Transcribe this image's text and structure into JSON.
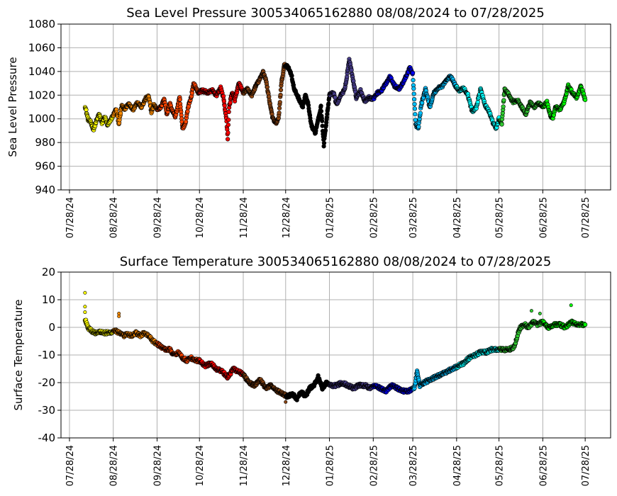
{
  "chart_data": [
    {
      "type": "scatter",
      "title": "Sea Level Pressure 300534065162880  08/08/2024 to 07/28/2025",
      "ylabel": "Sea Level Pressure",
      "xlabel": "",
      "xlim": [
        "2024-07-22",
        "2025-08-15"
      ],
      "ylim": [
        940,
        1080
      ],
      "yticks": [
        940,
        960,
        980,
        1000,
        1020,
        1040,
        1060,
        1080
      ],
      "xticks": [
        "2024-07-28",
        "2024-08-28",
        "2024-09-28",
        "2024-10-28",
        "2024-11-28",
        "2024-12-28",
        "2025-01-28",
        "2025-02-28",
        "2025-03-28",
        "2025-04-28",
        "2025-05-28",
        "2025-06-28",
        "2025-07-28"
      ],
      "xtick_labels": [
        "07/28/24",
        "08/28/24",
        "09/28/24",
        "10/28/24",
        "11/28/24",
        "12/28/24",
        "01/28/25",
        "02/28/25",
        "03/28/25",
        "04/28/25",
        "05/28/25",
        "06/28/25",
        "07/28/25"
      ],
      "grid": true,
      "color_segments": [
        {
          "start": "2024-08-08",
          "end": "2024-08-28",
          "color": "#ffff00"
        },
        {
          "start": "2024-08-28",
          "end": "2024-09-28",
          "color": "#ff8c00"
        },
        {
          "start": "2024-09-28",
          "end": "2024-10-28",
          "color": "#ff4500"
        },
        {
          "start": "2024-10-28",
          "end": "2024-11-28",
          "color": "#ff0000"
        },
        {
          "start": "2024-11-28",
          "end": "2024-12-28",
          "color": "#8b4513"
        },
        {
          "start": "2024-12-28",
          "end": "2025-01-28",
          "color": "#000000"
        },
        {
          "start": "2025-01-28",
          "end": "2025-02-28",
          "color": "#483d8b"
        },
        {
          "start": "2025-02-28",
          "end": "2025-03-28",
          "color": "#0000ff"
        },
        {
          "start": "2025-03-28",
          "end": "2025-04-28",
          "color": "#00bfff"
        },
        {
          "start": "2025-04-28",
          "end": "2025-05-28",
          "color": "#00ffff"
        },
        {
          "start": "2025-05-28",
          "end": "2025-06-28",
          "color": "#32cd32"
        },
        {
          "start": "2025-06-28",
          "end": "2025-07-28",
          "color": "#00ff00"
        }
      ],
      "points": [
        [
          "2024-08-08",
          1011
        ],
        [
          "2024-08-10",
          1000
        ],
        [
          "2024-08-12",
          997
        ],
        [
          "2024-08-14",
          991
        ],
        [
          "2024-08-16",
          998
        ],
        [
          "2024-08-18",
          1004
        ],
        [
          "2024-08-20",
          996
        ],
        [
          "2024-08-22",
          1002
        ],
        [
          "2024-08-24",
          994
        ],
        [
          "2024-08-26",
          999
        ],
        [
          "2024-08-28",
          1003
        ],
        [
          "2024-08-30",
          1008
        ],
        [
          "2024-09-01",
          996
        ],
        [
          "2024-09-03",
          1011
        ],
        [
          "2024-09-05",
          1008
        ],
        [
          "2024-09-08",
          1013
        ],
        [
          "2024-09-11",
          1008
        ],
        [
          "2024-09-14",
          1014
        ],
        [
          "2024-09-17",
          1010
        ],
        [
          "2024-09-20",
          1017
        ],
        [
          "2024-09-22",
          1019
        ],
        [
          "2024-09-24",
          1006
        ],
        [
          "2024-09-26",
          1012
        ],
        [
          "2024-09-28",
          1008
        ],
        [
          "2024-10-01",
          1010
        ],
        [
          "2024-10-03",
          1017
        ],
        [
          "2024-10-05",
          1004
        ],
        [
          "2024-10-07",
          1013
        ],
        [
          "2024-10-09",
          1006
        ],
        [
          "2024-10-11",
          1002
        ],
        [
          "2024-10-14",
          1018
        ],
        [
          "2024-10-16",
          992
        ],
        [
          "2024-10-18",
          996
        ],
        [
          "2024-10-20",
          1010
        ],
        [
          "2024-10-22",
          1018
        ],
        [
          "2024-10-24",
          1030
        ],
        [
          "2024-10-27",
          1022
        ],
        [
          "2024-10-30",
          1024
        ],
        [
          "2024-11-03",
          1022
        ],
        [
          "2024-11-06",
          1024
        ],
        [
          "2024-11-09",
          1020
        ],
        [
          "2024-11-12",
          1026
        ],
        [
          "2024-11-14",
          1018
        ],
        [
          "2024-11-16",
          1000
        ],
        [
          "2024-11-17",
          984
        ],
        [
          "2024-11-18",
          1010
        ],
        [
          "2024-11-20",
          1022
        ],
        [
          "2024-11-22",
          1016
        ],
        [
          "2024-11-25",
          1030
        ],
        [
          "2024-11-28",
          1022
        ],
        [
          "2024-12-01",
          1025
        ],
        [
          "2024-12-04",
          1020
        ],
        [
          "2024-12-07",
          1028
        ],
        [
          "2024-12-10",
          1034
        ],
        [
          "2024-12-12",
          1040
        ],
        [
          "2024-12-14",
          1033
        ],
        [
          "2024-12-17",
          1012
        ],
        [
          "2024-12-19",
          1000
        ],
        [
          "2024-12-21",
          996
        ],
        [
          "2024-12-23",
          1000
        ],
        [
          "2024-12-25",
          1030
        ],
        [
          "2024-12-27",
          1045
        ],
        [
          "2024-12-29",
          1045
        ],
        [
          "2025-01-01",
          1038
        ],
        [
          "2025-01-03",
          1025
        ],
        [
          "2025-01-06",
          1018
        ],
        [
          "2025-01-09",
          1010
        ],
        [
          "2025-01-11",
          1020
        ],
        [
          "2025-01-13",
          1012
        ],
        [
          "2025-01-15",
          995
        ],
        [
          "2025-01-18",
          988
        ],
        [
          "2025-01-20",
          1000
        ],
        [
          "2025-01-22",
          1010
        ],
        [
          "2025-01-24",
          978
        ],
        [
          "2025-01-26",
          1000
        ],
        [
          "2025-01-28",
          1020
        ],
        [
          "2025-01-31",
          1022
        ],
        [
          "2025-02-02",
          1012
        ],
        [
          "2025-02-05",
          1020
        ],
        [
          "2025-02-08",
          1025
        ],
        [
          "2025-02-11",
          1050
        ],
        [
          "2025-02-13",
          1038
        ],
        [
          "2025-02-16",
          1018
        ],
        [
          "2025-02-19",
          1024
        ],
        [
          "2025-02-22",
          1015
        ],
        [
          "2025-02-25",
          1018
        ],
        [
          "2025-02-28",
          1017
        ],
        [
          "2025-03-03",
          1022
        ],
        [
          "2025-03-06",
          1024
        ],
        [
          "2025-03-09",
          1030
        ],
        [
          "2025-03-12",
          1036
        ],
        [
          "2025-03-15",
          1028
        ],
        [
          "2025-03-18",
          1025
        ],
        [
          "2025-03-21",
          1030
        ],
        [
          "2025-03-24",
          1038
        ],
        [
          "2025-03-26",
          1043
        ],
        [
          "2025-03-28",
          1038
        ],
        [
          "2025-03-30",
          995
        ],
        [
          "2025-04-01",
          992
        ],
        [
          "2025-04-03",
          1012
        ],
        [
          "2025-04-06",
          1025
        ],
        [
          "2025-04-09",
          1010
        ],
        [
          "2025-04-12",
          1022
        ],
        [
          "2025-04-15",
          1026
        ],
        [
          "2025-04-18",
          1028
        ],
        [
          "2025-04-21",
          1033
        ],
        [
          "2025-04-24",
          1036
        ],
        [
          "2025-04-27",
          1028
        ],
        [
          "2025-04-30",
          1024
        ],
        [
          "2025-05-03",
          1026
        ],
        [
          "2025-05-06",
          1020
        ],
        [
          "2025-05-09",
          1006
        ],
        [
          "2025-05-12",
          1010
        ],
        [
          "2025-05-15",
          1025
        ],
        [
          "2025-05-18",
          1012
        ],
        [
          "2025-05-21",
          1006
        ],
        [
          "2025-05-24",
          996
        ],
        [
          "2025-05-26",
          992
        ],
        [
          "2025-05-28",
          1000
        ],
        [
          "2025-05-30",
          996
        ],
        [
          "2025-06-01",
          1025
        ],
        [
          "2025-06-04",
          1020
        ],
        [
          "2025-06-07",
          1014
        ],
        [
          "2025-06-10",
          1016
        ],
        [
          "2025-06-13",
          1010
        ],
        [
          "2025-06-16",
          1004
        ],
        [
          "2025-06-19",
          1014
        ],
        [
          "2025-06-22",
          1010
        ],
        [
          "2025-06-25",
          1013
        ],
        [
          "2025-06-28",
          1010
        ],
        [
          "2025-07-01",
          1014
        ],
        [
          "2025-07-03",
          1004
        ],
        [
          "2025-07-05",
          1000
        ],
        [
          "2025-07-07",
          1010
        ],
        [
          "2025-07-10",
          1008
        ],
        [
          "2025-07-13",
          1014
        ],
        [
          "2025-07-16",
          1028
        ],
        [
          "2025-07-19",
          1022
        ],
        [
          "2025-07-22",
          1018
        ],
        [
          "2025-07-25",
          1028
        ],
        [
          "2025-07-28",
          1016
        ]
      ]
    },
    {
      "type": "scatter",
      "title": "Surface Temperature 300534065162880  08/08/2024 to 07/28/2025",
      "ylabel": "Surface Temperature",
      "xlabel": "",
      "xlim": [
        "2024-07-22",
        "2025-08-15"
      ],
      "ylim": [
        -40,
        20
      ],
      "yticks": [
        -40,
        -30,
        -20,
        -10,
        0,
        10,
        20
      ],
      "xticks": [
        "2024-07-28",
        "2024-08-28",
        "2024-09-28",
        "2024-10-28",
        "2024-11-28",
        "2024-12-28",
        "2025-01-28",
        "2025-02-28",
        "2025-03-28",
        "2025-04-28",
        "2025-05-28",
        "2025-06-28",
        "2025-07-28"
      ],
      "xtick_labels": [
        "07/28/24",
        "08/28/24",
        "09/28/24",
        "10/28/24",
        "11/28/24",
        "12/28/24",
        "01/28/25",
        "02/28/25",
        "03/28/25",
        "04/28/25",
        "05/28/25",
        "06/28/25",
        "07/28/25"
      ],
      "grid": true,
      "color_segments": [
        {
          "start": "2024-08-08",
          "end": "2024-08-28",
          "color": "#ffff00"
        },
        {
          "start": "2024-08-28",
          "end": "2024-09-28",
          "color": "#ff8c00"
        },
        {
          "start": "2024-09-28",
          "end": "2024-10-28",
          "color": "#ff4500"
        },
        {
          "start": "2024-10-28",
          "end": "2024-11-28",
          "color": "#ff0000"
        },
        {
          "start": "2024-11-28",
          "end": "2024-12-28",
          "color": "#8b4513"
        },
        {
          "start": "2024-12-28",
          "end": "2025-01-28",
          "color": "#000000"
        },
        {
          "start": "2025-01-28",
          "end": "2025-02-28",
          "color": "#483d8b"
        },
        {
          "start": "2025-02-28",
          "end": "2025-03-28",
          "color": "#0000ff"
        },
        {
          "start": "2025-03-28",
          "end": "2025-04-28",
          "color": "#00bfff"
        },
        {
          "start": "2025-04-28",
          "end": "2025-05-28",
          "color": "#00ffff"
        },
        {
          "start": "2025-05-28",
          "end": "2025-06-28",
          "color": "#32cd32"
        },
        {
          "start": "2025-06-28",
          "end": "2025-07-28",
          "color": "#00ff00"
        }
      ],
      "points": [
        [
          "2024-08-08",
          3
        ],
        [
          "2024-08-10",
          0
        ],
        [
          "2024-08-12",
          -1
        ],
        [
          "2024-08-15",
          -2
        ],
        [
          "2024-08-18",
          -1.5
        ],
        [
          "2024-08-22",
          -2
        ],
        [
          "2024-08-26",
          -2
        ],
        [
          "2024-08-29",
          -1
        ],
        [
          "2024-09-01",
          -2
        ],
        [
          "2024-09-04",
          -3
        ],
        [
          "2024-09-07",
          -2.5
        ],
        [
          "2024-09-10",
          -3
        ],
        [
          "2024-09-13",
          -2
        ],
        [
          "2024-09-16",
          -3
        ],
        [
          "2024-09-19",
          -2
        ],
        [
          "2024-09-22",
          -3
        ],
        [
          "2024-09-25",
          -5
        ],
        [
          "2024-09-28",
          -6
        ],
        [
          "2024-10-01",
          -7
        ],
        [
          "2024-10-04",
          -8
        ],
        [
          "2024-10-07",
          -8
        ],
        [
          "2024-10-10",
          -10
        ],
        [
          "2024-10-13",
          -9
        ],
        [
          "2024-10-16",
          -11
        ],
        [
          "2024-10-19",
          -12
        ],
        [
          "2024-10-22",
          -11
        ],
        [
          "2024-10-25",
          -12
        ],
        [
          "2024-10-28",
          -12
        ],
        [
          "2024-11-01",
          -14
        ],
        [
          "2024-11-05",
          -13
        ],
        [
          "2024-11-09",
          -15
        ],
        [
          "2024-11-13",
          -16
        ],
        [
          "2024-11-17",
          -18
        ],
        [
          "2024-11-21",
          -15
        ],
        [
          "2024-11-25",
          -16
        ],
        [
          "2024-11-28",
          -17
        ],
        [
          "2024-12-02",
          -20
        ],
        [
          "2024-12-06",
          -21
        ],
        [
          "2024-12-10",
          -19
        ],
        [
          "2024-12-14",
          -22
        ],
        [
          "2024-12-18",
          -21
        ],
        [
          "2024-12-22",
          -23
        ],
        [
          "2024-12-26",
          -24
        ],
        [
          "2024-12-29",
          -25
        ],
        [
          "2025-01-02",
          -24
        ],
        [
          "2025-01-05",
          -26
        ],
        [
          "2025-01-08",
          -23
        ],
        [
          "2025-01-11",
          -25
        ],
        [
          "2025-01-14",
          -22
        ],
        [
          "2025-01-17",
          -21
        ],
        [
          "2025-01-20",
          -18
        ],
        [
          "2025-01-23",
          -22
        ],
        [
          "2025-01-26",
          -20
        ],
        [
          "2025-01-29",
          -21
        ],
        [
          "2025-02-02",
          -21
        ],
        [
          "2025-02-06",
          -20
        ],
        [
          "2025-02-10",
          -21
        ],
        [
          "2025-02-14",
          -22
        ],
        [
          "2025-02-18",
          -21
        ],
        [
          "2025-02-22",
          -21
        ],
        [
          "2025-02-26",
          -22
        ],
        [
          "2025-03-01",
          -21
        ],
        [
          "2025-03-05",
          -22
        ],
        [
          "2025-03-09",
          -23
        ],
        [
          "2025-03-13",
          -21
        ],
        [
          "2025-03-17",
          -22
        ],
        [
          "2025-03-21",
          -23
        ],
        [
          "2025-03-25",
          -23
        ],
        [
          "2025-03-29",
          -22
        ],
        [
          "2025-03-31",
          -16
        ],
        [
          "2025-04-02",
          -21
        ],
        [
          "2025-04-05",
          -20
        ],
        [
          "2025-04-09",
          -19
        ],
        [
          "2025-04-13",
          -18
        ],
        [
          "2025-04-17",
          -17
        ],
        [
          "2025-04-21",
          -16
        ],
        [
          "2025-04-25",
          -15
        ],
        [
          "2025-04-29",
          -14
        ],
        [
          "2025-05-03",
          -13
        ],
        [
          "2025-05-07",
          -11
        ],
        [
          "2025-05-11",
          -10
        ],
        [
          "2025-05-15",
          -9
        ],
        [
          "2025-05-19",
          -9
        ],
        [
          "2025-05-23",
          -8
        ],
        [
          "2025-05-27",
          -8
        ],
        [
          "2025-05-31",
          -8
        ],
        [
          "2025-06-04",
          -8
        ],
        [
          "2025-06-08",
          -7
        ],
        [
          "2025-06-10",
          -3
        ],
        [
          "2025-06-12",
          0
        ],
        [
          "2025-06-15",
          1
        ],
        [
          "2025-06-18",
          0
        ],
        [
          "2025-06-21",
          2
        ],
        [
          "2025-06-24",
          1
        ],
        [
          "2025-06-28",
          2
        ],
        [
          "2025-07-02",
          0
        ],
        [
          "2025-07-06",
          1
        ],
        [
          "2025-07-10",
          1
        ],
        [
          "2025-07-14",
          0
        ],
        [
          "2025-07-18",
          2
        ],
        [
          "2025-07-22",
          1
        ],
        [
          "2025-07-28",
          1
        ]
      ],
      "outliers": [
        [
          "2024-08-08",
          12.5
        ],
        [
          "2024-08-08",
          7.5
        ],
        [
          "2024-08-08",
          5.5
        ],
        [
          "2024-09-01",
          5
        ],
        [
          "2024-09-01",
          4
        ],
        [
          "2024-12-28",
          -27
        ],
        [
          "2025-06-20",
          6
        ],
        [
          "2025-06-26",
          5
        ],
        [
          "2025-07-18",
          8
        ]
      ]
    }
  ]
}
